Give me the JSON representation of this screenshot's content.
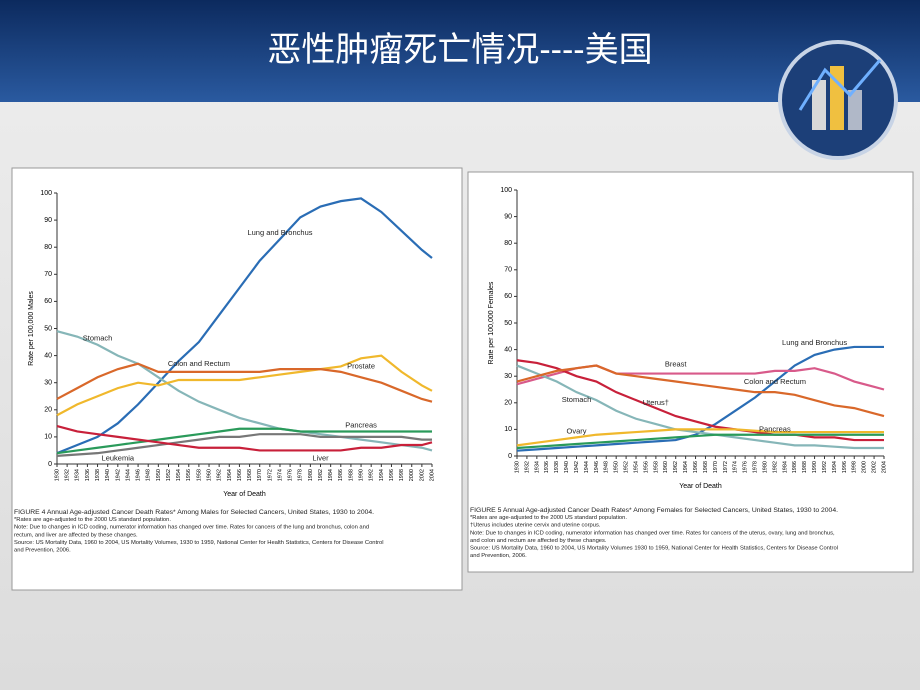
{
  "slide": {
    "title": "恶性肿瘤死亡情况----美国"
  },
  "chart_data": [
    {
      "type": "line",
      "y_label": "Rate per 100,000 Males",
      "x_label": "Year of Death",
      "x": [
        1930,
        1934,
        1938,
        1942,
        1946,
        1950,
        1954,
        1958,
        1962,
        1966,
        1970,
        1974,
        1978,
        1982,
        1986,
        1990,
        1994,
        1998,
        2002,
        2004
      ],
      "xlim": [
        1930,
        2004
      ],
      "xticks": [
        1930,
        1932,
        1934,
        1936,
        1938,
        1940,
        1942,
        1944,
        1946,
        1948,
        1950,
        1952,
        1954,
        1956,
        1958,
        1960,
        1962,
        1964,
        1966,
        1968,
        1970,
        1972,
        1974,
        1976,
        1978,
        1980,
        1982,
        1984,
        1986,
        1988,
        1990,
        1992,
        1994,
        1996,
        1998,
        2000,
        2002,
        2004
      ],
      "ylim": [
        0,
        100
      ],
      "yticks": [
        0,
        10,
        20,
        30,
        40,
        50,
        60,
        70,
        80,
        90,
        100
      ],
      "series": [
        {
          "name": "Lung and Bronchus",
          "color": "#2a6db5",
          "values": [
            4,
            7,
            10,
            15,
            22,
            30,
            38,
            45,
            55,
            65,
            75,
            83,
            91,
            95,
            97,
            98,
            93,
            86,
            79,
            76
          ]
        },
        {
          "name": "Stomach",
          "color": "#86b6b8",
          "values": [
            49,
            47,
            44,
            40,
            37,
            32,
            27,
            23,
            20,
            17,
            15,
            13,
            12,
            11,
            10,
            9,
            8,
            7,
            6,
            5
          ]
        },
        {
          "name": "Prostate",
          "color": "#f0b82c",
          "values": [
            18,
            22,
            25,
            28,
            30,
            29,
            31,
            31,
            31,
            31,
            32,
            33,
            34,
            35,
            36,
            39,
            40,
            34,
            29,
            27
          ]
        },
        {
          "name": "Colon and Rectum",
          "color": "#d9682a",
          "values": [
            24,
            28,
            32,
            35,
            37,
            34,
            34,
            34,
            34,
            34,
            34,
            35,
            35,
            35,
            34,
            32,
            30,
            27,
            24,
            23
          ]
        },
        {
          "name": "Pancreas",
          "color": "#2a9a5a",
          "values": [
            4,
            5,
            6,
            7,
            8,
            9,
            10,
            11,
            12,
            13,
            13,
            13,
            12,
            12,
            12,
            12,
            12,
            12,
            12,
            12
          ]
        },
        {
          "name": "Leukemia",
          "color": "#777777",
          "values": [
            3,
            3.5,
            4,
            5,
            6,
            7,
            8,
            9,
            10,
            10,
            11,
            11,
            11,
            10,
            10,
            10,
            10,
            10,
            9,
            9
          ]
        },
        {
          "name": "Liver",
          "color": "#c8203a",
          "values": [
            14,
            12,
            11,
            10,
            9,
            8,
            7,
            6,
            6,
            6,
            5,
            5,
            5,
            5,
            5,
            6,
            6,
            7,
            7,
            8
          ]
        }
      ],
      "caption": [
        "FIGURE 4  Annual Age-adjusted Cancer Death Rates* Among Males for Selected Cancers, United States, 1930 to 2004.",
        "*Rates are age-adjusted to the 2000 US standard population.",
        "Note: Due to changes in ICD coding, numerator information has changed over time. Rates for cancers of the lung and bronchus, colon and",
        "rectum, and liver are affected by these changes.",
        "Source: US Mortality Data, 1960 to 2004, US Mortality Volumes, 1930 to 1959, National Center for Health Statistics, Centers for Disease Control",
        "and Prevention, 2006."
      ]
    },
    {
      "type": "line",
      "y_label": "Rate per 100,000 Females",
      "x_label": "Year of Death",
      "x": [
        1930,
        1934,
        1938,
        1942,
        1946,
        1950,
        1954,
        1958,
        1962,
        1966,
        1970,
        1974,
        1978,
        1982,
        1986,
        1990,
        1994,
        1998,
        2002,
        2004
      ],
      "xlim": [
        1930,
        2004
      ],
      "xticks": [
        1930,
        1932,
        1934,
        1936,
        1938,
        1940,
        1942,
        1944,
        1946,
        1948,
        1950,
        1952,
        1954,
        1956,
        1958,
        1960,
        1962,
        1964,
        1966,
        1968,
        1970,
        1972,
        1974,
        1976,
        1978,
        1980,
        1982,
        1984,
        1986,
        1988,
        1990,
        1992,
        1994,
        1996,
        1998,
        2000,
        2002,
        2004
      ],
      "ylim": [
        0,
        100
      ],
      "yticks": [
        0,
        10,
        20,
        30,
        40,
        50,
        60,
        70,
        80,
        90,
        100
      ],
      "series": [
        {
          "name": "Lung and Bronchus",
          "color": "#2a6db5",
          "values": [
            2,
            2.5,
            3,
            3.5,
            4,
            4.5,
            5,
            5.5,
            6,
            8,
            12,
            17,
            22,
            28,
            34,
            38,
            40,
            41,
            41,
            41
          ]
        },
        {
          "name": "Breast",
          "color": "#d85a8a",
          "values": [
            27,
            29,
            31,
            33,
            34,
            31,
            31,
            31,
            31,
            31,
            31,
            31,
            31,
            32,
            32,
            33,
            31,
            28,
            26,
            25
          ]
        },
        {
          "name": "Uterus†",
          "color": "#c8203a",
          "values": [
            36,
            35,
            33,
            30,
            28,
            24,
            21,
            18,
            15,
            13,
            11,
            10,
            9,
            8,
            8,
            7,
            7,
            6,
            6,
            6
          ]
        },
        {
          "name": "Stomach",
          "color": "#86b6b8",
          "values": [
            34,
            31,
            28,
            24,
            21,
            17,
            14,
            12,
            10,
            9,
            8,
            7,
            6,
            5,
            4,
            4,
            3.5,
            3,
            3,
            3
          ]
        },
        {
          "name": "Colon and Rectum",
          "color": "#d9682a",
          "values": [
            28,
            30,
            32,
            33,
            34,
            31,
            30,
            29,
            28,
            27,
            26,
            25,
            24,
            24,
            23,
            21,
            19,
            18,
            16,
            15
          ]
        },
        {
          "name": "Ovary",
          "color": "#f0b82c",
          "values": [
            4,
            5,
            6,
            7,
            8,
            8.5,
            9,
            9.5,
            10,
            10,
            10,
            10,
            9.5,
            9,
            9,
            9,
            9,
            9,
            9,
            9
          ]
        },
        {
          "name": "Pancreas",
          "color": "#2a9a5a",
          "values": [
            3,
            3.5,
            4,
            4.5,
            5,
            5.5,
            6,
            6.5,
            7,
            7.5,
            8,
            8,
            8,
            8,
            8,
            8,
            8,
            8,
            8,
            8
          ]
        }
      ],
      "caption": [
        "FIGURE 5  Annual Age-adjusted Cancer Death Rates* Among Females for Selected Cancers, United States, 1930 to 2004.",
        "*Rates are age-adjusted to the 2000 US standard population.",
        "†Uterus includes uterine cervix and uterine corpus.",
        "Note: Due to changes in ICD coding, numerator information has changed over time. Rates for cancers of the uterus, ovary, lung and bronchus,",
        "and colon and rectum are affected by these changes.",
        "Source: US Mortality Data, 1960 to 2004, US Mortality Volumes 1930 to 1959, National Center for Health Statistics, Centers for Disease Control",
        "and Prevention, 2006."
      ]
    }
  ]
}
